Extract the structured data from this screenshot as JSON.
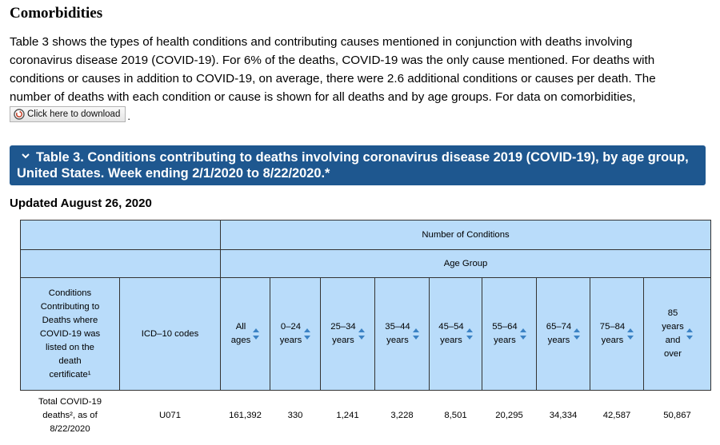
{
  "heading": "Comorbidities",
  "intro_lines": [
    "Table 3 shows the types of health conditions and contributing causes mentioned in conjunction with deaths involving",
    "coronavirus disease 2019 (COVID-19). For 6% of the deaths, COVID-19 was the only cause mentioned. For deaths with",
    "conditions or causes in addition to COVID-19, on average, there were 2.6 additional conditions or causes per death. The",
    "number of deaths with each condition or cause is shown for all deaths and by age groups. For data on comorbidities,"
  ],
  "download": {
    "label": "Click here to download",
    "trailing": "."
  },
  "banner": {
    "line1": "Table 3. Conditions contributing to deaths involving coronavirus disease 2019 (COVID-19), by age group,",
    "line2": "United States. Week ending 2/1/2020 to 8/22/2020.*"
  },
  "updated": "Updated August 26, 2020",
  "table": {
    "header_row1": "Number of Conditions",
    "header_row2": "Age Group",
    "col_condition": [
      "Conditions",
      "Contributing to",
      "Deaths where",
      "COVID-19 was",
      "listed on the",
      "death",
      "certificate¹"
    ],
    "col_icd": "ICD–10 codes",
    "age_groups": [
      {
        "l1": "All",
        "l2": "ages"
      },
      {
        "l1": "0–24",
        "l2": "years"
      },
      {
        "l1": "25–34",
        "l2": "years"
      },
      {
        "l1": "35–44",
        "l2": "years"
      },
      {
        "l1": "45–54",
        "l2": "years"
      },
      {
        "l1": "55–64",
        "l2": "years"
      },
      {
        "l1": "65–74",
        "l2": "years"
      },
      {
        "l1": "75–84",
        "l2": "years"
      },
      {
        "l1": "85",
        "l2": "years",
        "l3": "and",
        "l4": "over"
      }
    ],
    "rows": [
      {
        "condition_lines": [
          "Total COVID-19",
          "deaths², as of",
          "8/22/2020"
        ],
        "icd": "U071",
        "values": [
          "161,392",
          "330",
          "1,241",
          "3,228",
          "8,501",
          "20,295",
          "34,334",
          "42,587",
          "50,867"
        ]
      }
    ]
  },
  "colors": {
    "banner": "#1e578f",
    "header_bg": "#b9dcfa",
    "sort_icon": "#3b82c4"
  },
  "icons": {
    "sort": "sort-arrows-icon",
    "banner": "chevron-down-icon",
    "download": "download-icon"
  }
}
